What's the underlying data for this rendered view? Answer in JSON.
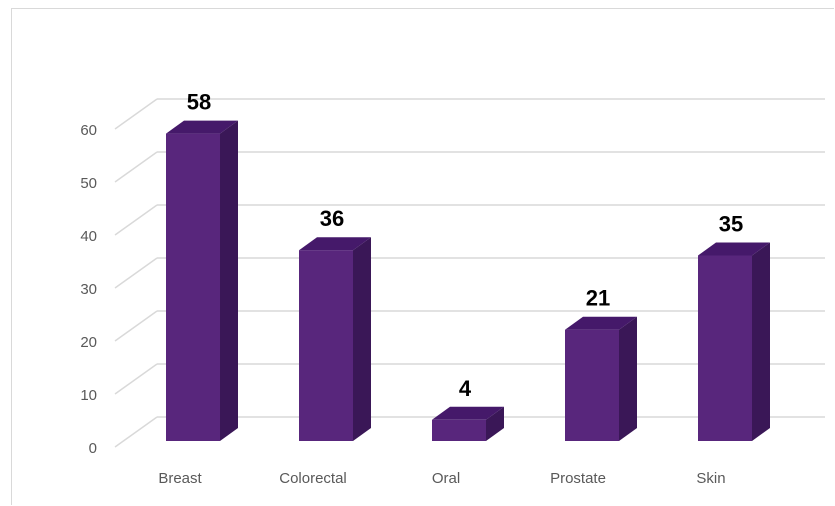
{
  "chart_data": {
    "type": "bar",
    "style": "3d-column",
    "categories": [
      "Breast",
      "Colorectal",
      "Oral",
      "Prostate",
      "Skin"
    ],
    "values": [
      58,
      36,
      4,
      21,
      35
    ],
    "data_labels": [
      "58",
      "36",
      "4",
      "21",
      "35"
    ],
    "title": "",
    "xlabel": "",
    "ylabel": "",
    "ylim": [
      0,
      60
    ],
    "yticks": [
      0,
      10,
      20,
      30,
      40,
      50,
      60
    ],
    "grid": true,
    "legend": "none",
    "colors": {
      "bar_front": "#58267c",
      "bar_side": "#3a1757",
      "bar_top": "#45196a",
      "grid": "#d9d9d9",
      "tick_text": "#595959",
      "data_text": "#000000"
    }
  }
}
